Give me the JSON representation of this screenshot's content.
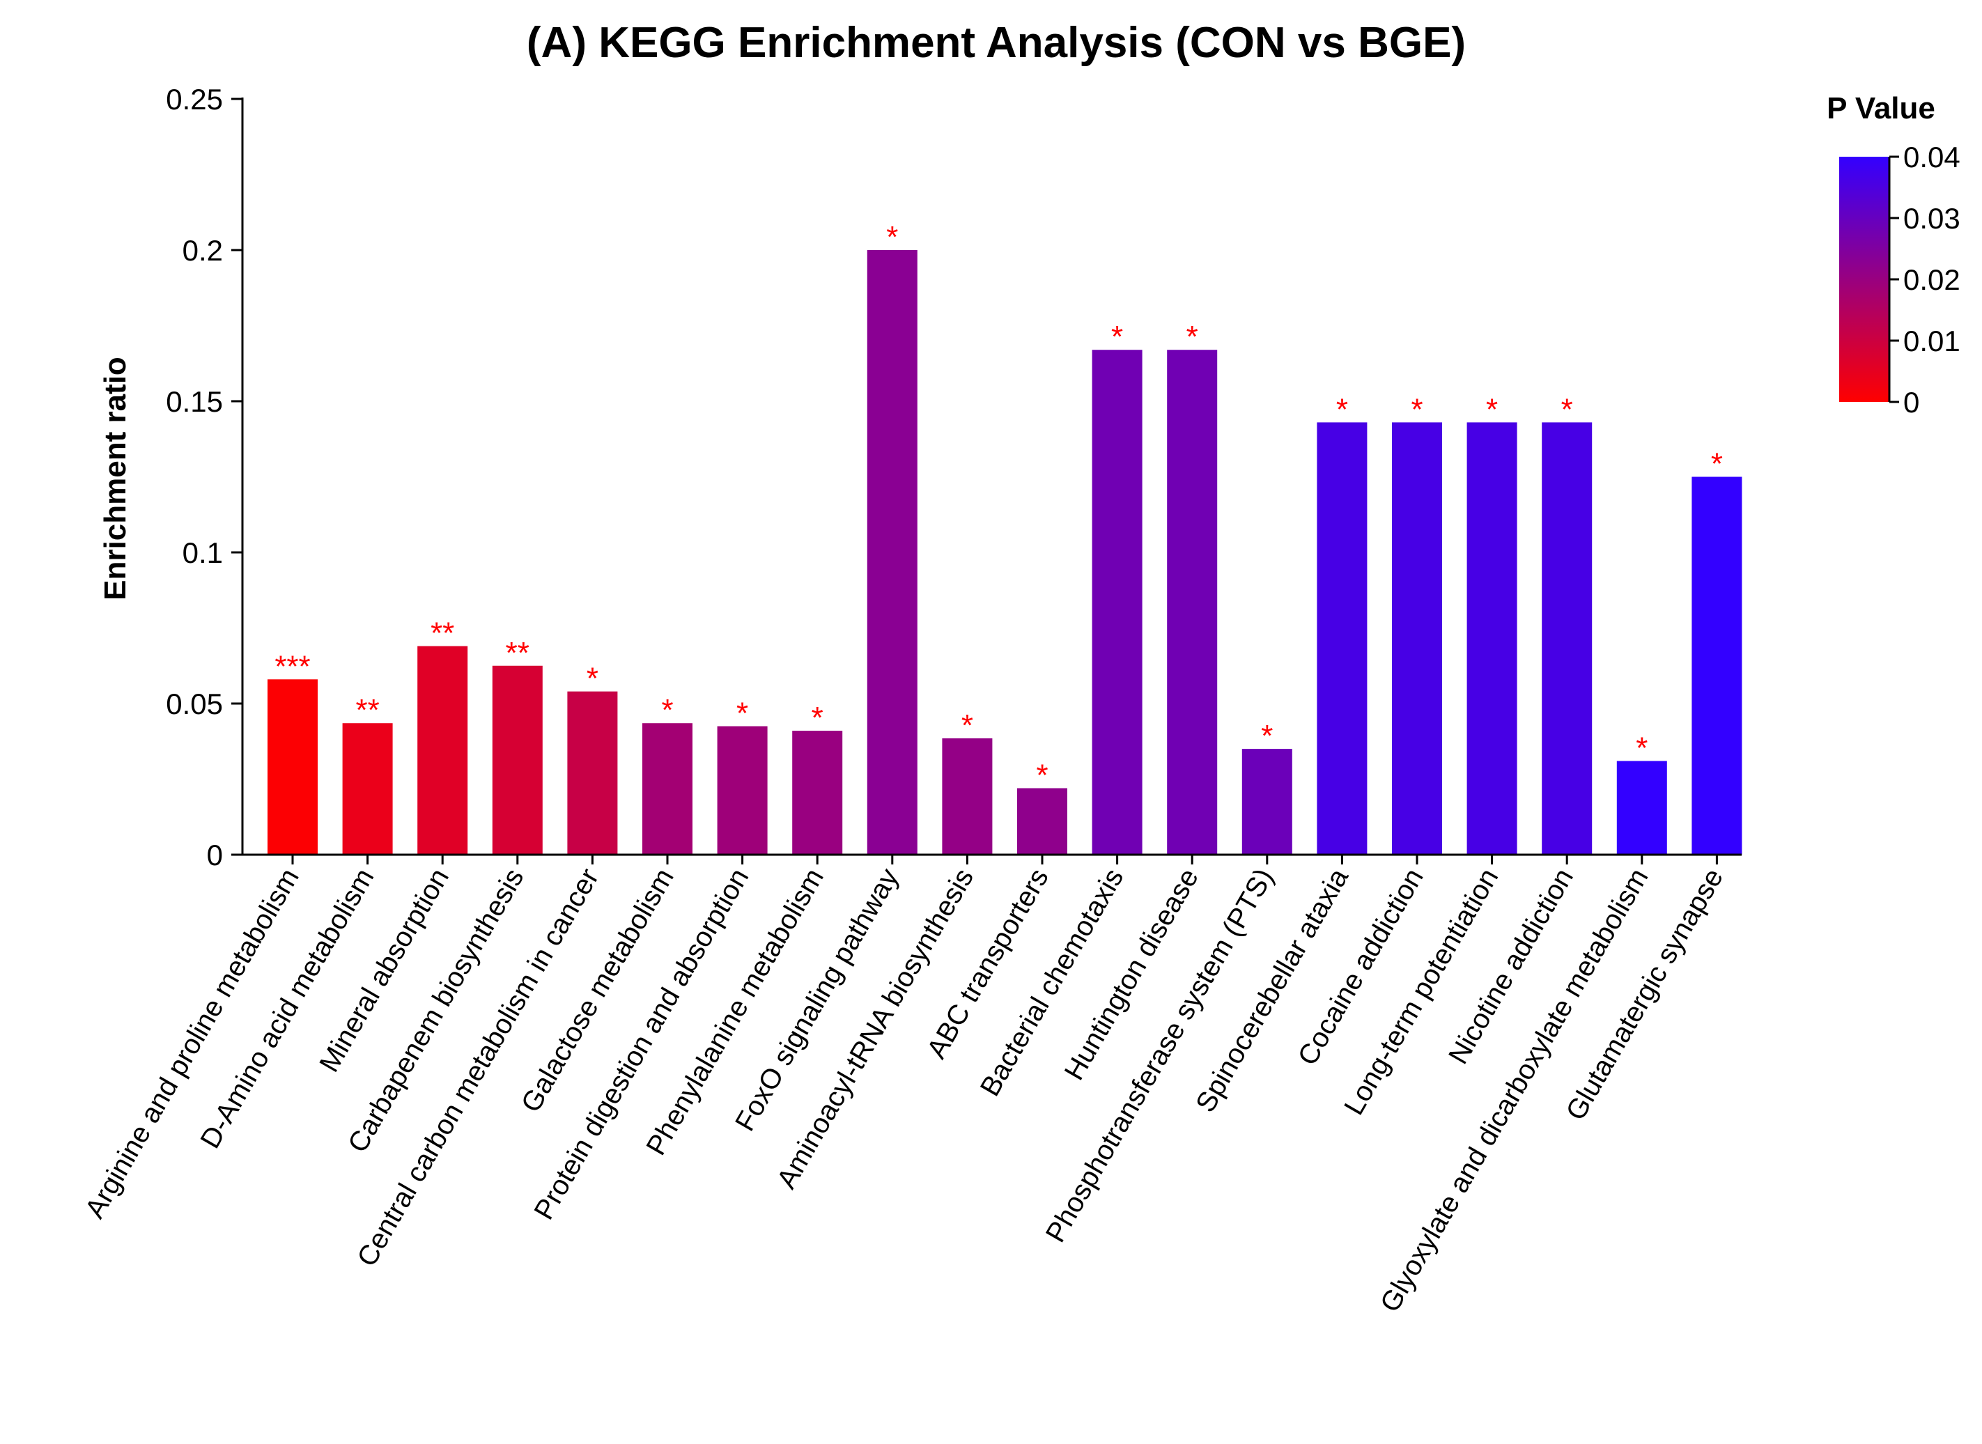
{
  "chart_data": {
    "type": "bar",
    "title": "(A) KEGG Enrichment Analysis (CON vs BGE)",
    "xlabel": "",
    "ylabel": "Enrichment ratio",
    "ylim": [
      0,
      0.25
    ],
    "yticks": [
      {
        "value": 0,
        "label": "0"
      },
      {
        "value": 0.05,
        "label": "0.05"
      },
      {
        "value": 0.1,
        "label": "0.1"
      },
      {
        "value": 0.15,
        "label": "0.15"
      },
      {
        "value": 0.2,
        "label": "0.2"
      },
      {
        "value": 0.25,
        "label": "0.25"
      }
    ],
    "grid": false,
    "categories": [
      "Arginine and proline metabolism",
      "D-Amino acid metabolism",
      "Mineral absorption",
      "Carbapenem biosynthesis",
      "Central carbon metabolism in cancer",
      "Galactose metabolism",
      "Protein digestion and absorption",
      "Phenylalanine metabolism",
      "FoxO signaling pathway",
      "Aminoacyl-tRNA biosynthesis",
      "ABC transporters",
      "Bacterial chemotaxis",
      "Huntington disease",
      "Phosphotransferase system (PTS)",
      "Spinocerebellar ataxia",
      "Cocaine addiction",
      "Long-term potentiation",
      "Nicotine addiction",
      "Glyoxylate and dicarboxylate metabolism",
      "Glutamatergic synapse"
    ],
    "values": [
      0.058,
      0.0435,
      0.069,
      0.0625,
      0.054,
      0.0435,
      0.0425,
      0.041,
      0.2,
      0.0385,
      0.022,
      0.167,
      0.167,
      0.035,
      0.143,
      0.143,
      0.143,
      0.143,
      0.031,
      0.125
    ],
    "p_values": [
      0.0005,
      0.004,
      0.006,
      0.008,
      0.011,
      0.018,
      0.019,
      0.02,
      0.023,
      0.021,
      0.022,
      0.028,
      0.028,
      0.029,
      0.036,
      0.036,
      0.036,
      0.036,
      0.04,
      0.04
    ],
    "significance": [
      "***",
      "**",
      "**",
      "**",
      "*",
      "*",
      "*",
      "*",
      "*",
      "*",
      "*",
      "*",
      "*",
      "*",
      "*",
      "*",
      "*",
      "*",
      "*",
      "*"
    ],
    "colorbar": {
      "title": "P Value",
      "range": [
        0,
        0.04
      ],
      "ticks": [
        {
          "value": 0,
          "label": "0"
        },
        {
          "value": 0.01,
          "label": "0.01"
        },
        {
          "value": 0.02,
          "label": "0.02"
        },
        {
          "value": 0.03,
          "label": "0.03"
        },
        {
          "value": 0.04,
          "label": "0.04"
        }
      ],
      "low_color": "#ff0000",
      "high_color": "#3300ff",
      "legend_position": "top-right"
    },
    "significance_color": "#ff0000"
  }
}
